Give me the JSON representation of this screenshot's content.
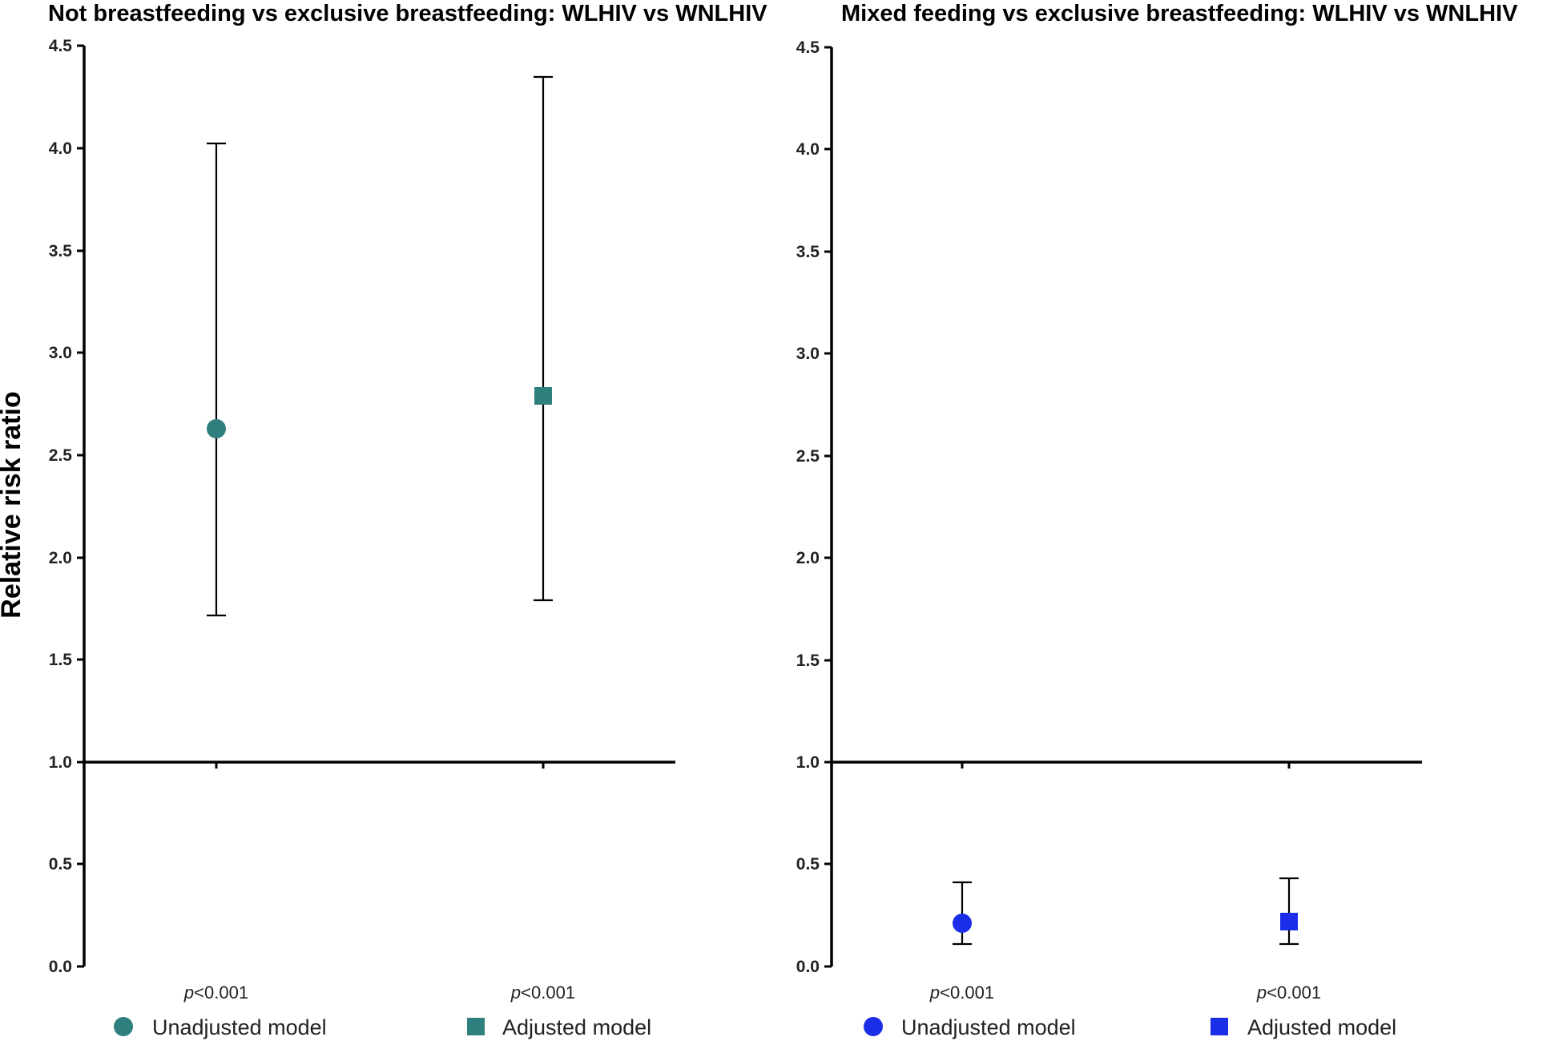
{
  "chart_data": [
    {
      "type": "scatter",
      "title": "Not breastfeeding vs exclusive breastfeeding: WLHIV vs WNLHIV",
      "xlabel": "",
      "ylabel": "Relative risk ratio",
      "ylim": [
        0,
        4.5
      ],
      "yticks": [
        "0.0",
        "0.5",
        "1.0",
        "1.5",
        "2.0",
        "2.5",
        "3.0",
        "3.5",
        "4.0",
        "4.5"
      ],
      "reference_line": 1.0,
      "color": "#2e7f7e",
      "series": [
        {
          "name": "Unadjusted model",
          "marker": "circle",
          "value": 2.62,
          "ci_low": 1.71,
          "ci_high": 4.02,
          "p_prefix": "p",
          "p_rest": "<0.001"
        },
        {
          "name": "Adjusted model",
          "marker": "square",
          "value": 2.78,
          "ci_low": 1.78,
          "ci_high": 4.34,
          "p_prefix": "p",
          "p_rest": "<0.001"
        }
      ]
    },
    {
      "type": "scatter",
      "title": "Mixed feeding vs exclusive breastfeeding: WLHIV vs WNLHIV",
      "xlabel": "",
      "ylabel": "",
      "ylim": [
        0,
        4.5
      ],
      "yticks": [
        "0.0",
        "0.5",
        "1.0",
        "1.5",
        "2.0",
        "2.5",
        "3.0",
        "3.5",
        "4.0",
        "4.5"
      ],
      "reference_line": 1.0,
      "color": "#1a2ee8",
      "series": [
        {
          "name": "Unadjusted model",
          "marker": "circle",
          "value": 0.21,
          "ci_low": 0.11,
          "ci_high": 0.41,
          "p_prefix": "p",
          "p_rest": "<0.001"
        },
        {
          "name": "Adjusted model",
          "marker": "square",
          "value": 0.22,
          "ci_low": 0.11,
          "ci_high": 0.43,
          "p_prefix": "p",
          "p_rest": "<0.001"
        }
      ]
    }
  ]
}
